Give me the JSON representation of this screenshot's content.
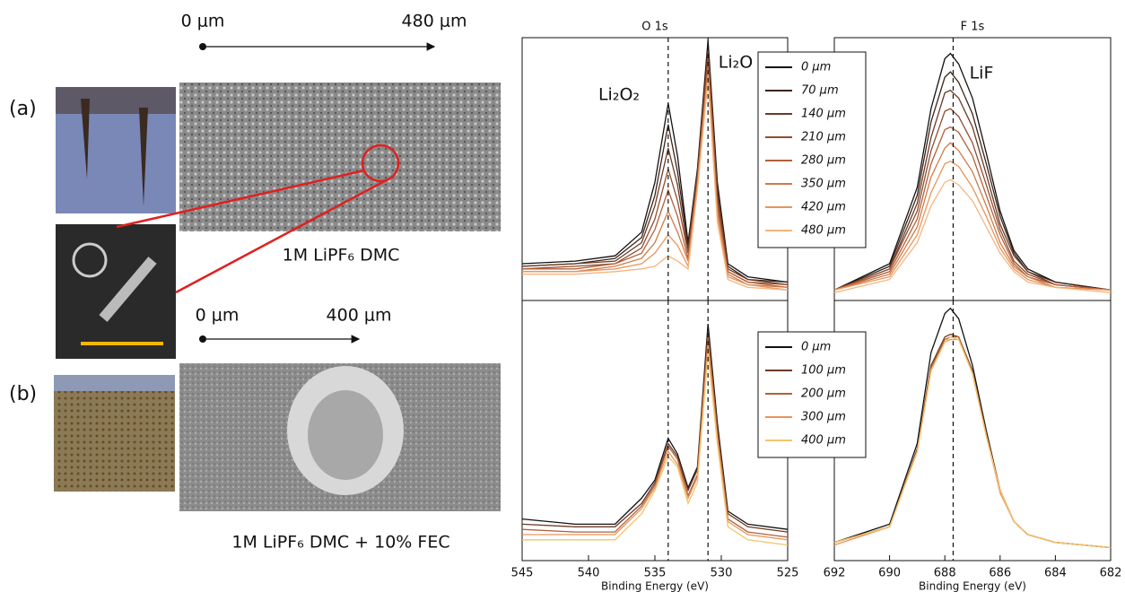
{
  "figure": {
    "label_a": "(a)",
    "label_b": "(b)",
    "scale_a_start": "0 μm",
    "scale_a_end": "480 μm",
    "caption_a": "1M LiPF₆ DMC",
    "scale_b_start": "0 μm",
    "scale_b_end": "400 μm",
    "caption_b": "1M LiPF₆ DMC + 10% FEC"
  },
  "chart_data": [
    {
      "type": "line",
      "title": "O 1s",
      "x": [
        545,
        541,
        538,
        536,
        535,
        534,
        533.3,
        532.5,
        531.8,
        531,
        530.3,
        529.5,
        528,
        525
      ],
      "xlim": [
        545,
        525
      ],
      "ylim": [
        0,
        100
      ],
      "legend": "right",
      "reference_lines": [
        534,
        531
      ],
      "annotations": [
        "Li₂O₂",
        "Li₂O"
      ],
      "series": [
        {
          "name": "0 μm",
          "color": "#111111",
          "values": [
            14,
            15,
            17,
            26,
            45,
            75,
            55,
            22,
            50,
            99,
            45,
            14,
            9,
            7
          ]
        },
        {
          "name": "70 μm",
          "color": "#3d2418",
          "values": [
            13,
            14,
            16,
            24,
            40,
            67,
            49,
            21,
            49,
            97,
            43,
            13,
            8,
            7
          ]
        },
        {
          "name": "140 μm",
          "color": "#6b3a26",
          "values": [
            13,
            14,
            15,
            22,
            36,
            58,
            44,
            19,
            48,
            95,
            41,
            12,
            8,
            6
          ]
        },
        {
          "name": "210 μm",
          "color": "#8f4d30",
          "values": [
            12,
            13,
            14,
            20,
            31,
            50,
            38,
            18,
            47,
            93,
            39,
            11,
            7,
            6
          ]
        },
        {
          "name": "280 μm",
          "color": "#b2603a",
          "values": [
            12,
            12,
            14,
            18,
            27,
            42,
            32,
            16,
            45,
            90,
            36,
            11,
            7,
            5
          ]
        },
        {
          "name": "350 μm",
          "color": "#d07a46",
          "values": [
            11,
            11,
            13,
            16,
            22,
            34,
            26,
            15,
            44,
            88,
            34,
            10,
            6,
            5
          ]
        },
        {
          "name": "420 μm",
          "color": "#e8955a",
          "values": [
            11,
            11,
            12,
            14,
            18,
            25,
            21,
            13,
            43,
            86,
            32,
            9,
            6,
            4
          ]
        },
        {
          "name": "480 μm",
          "color": "#f5b57e",
          "values": [
            10,
            10,
            11,
            12,
            13,
            17,
            15,
            12,
            42,
            84,
            30,
            8,
            5,
            4
          ]
        }
      ]
    },
    {
      "type": "line",
      "title": "F 1s",
      "x": [
        692,
        690,
        689,
        688.5,
        688,
        687.8,
        687.5,
        687,
        686.5,
        686,
        685.5,
        685,
        684,
        682
      ],
      "xlim": [
        692,
        682
      ],
      "ylim": [
        0,
        100
      ],
      "reference_lines": [
        687.7
      ],
      "annotations": [
        "LiF"
      ],
      "series": [
        {
          "color": "#111111",
          "values": [
            4,
            14,
            43,
            73,
            92,
            94,
            90,
            77,
            56,
            34,
            19,
            12,
            7,
            4
          ]
        },
        {
          "color": "#3d2418",
          "values": [
            4,
            13,
            40,
            68,
            85,
            87,
            83,
            71,
            52,
            32,
            18,
            11,
            7,
            4
          ]
        },
        {
          "color": "#6b3a26",
          "values": [
            4,
            12,
            37,
            62,
            79,
            80,
            77,
            66,
            48,
            29,
            17,
            11,
            6,
            4
          ]
        },
        {
          "color": "#8f4d30",
          "values": [
            4,
            12,
            34,
            57,
            72,
            73,
            70,
            60,
            44,
            27,
            15,
            10,
            6,
            4
          ]
        },
        {
          "color": "#b2603a",
          "values": [
            4,
            11,
            31,
            52,
            65,
            66,
            64,
            55,
            40,
            25,
            14,
            9,
            6,
            4
          ]
        },
        {
          "color": "#d07a46",
          "values": [
            4,
            10,
            28,
            47,
            58,
            60,
            57,
            49,
            36,
            22,
            13,
            9,
            5,
            4
          ]
        },
        {
          "color": "#e8955a",
          "values": [
            4,
            9,
            25,
            41,
            52,
            53,
            51,
            43,
            32,
            20,
            12,
            8,
            5,
            4
          ]
        },
        {
          "color": "#f5b57e",
          "values": [
            3,
            8,
            22,
            36,
            45,
            46,
            44,
            38,
            28,
            18,
            11,
            7,
            5,
            3
          ]
        }
      ]
    },
    {
      "type": "line",
      "x": [
        545,
        541,
        538,
        536,
        535,
        534,
        533.3,
        532.5,
        531.8,
        531,
        530.3,
        529.5,
        528,
        525
      ],
      "xlim": [
        545,
        525
      ],
      "ylim": [
        0,
        100
      ],
      "xticks": [
        545,
        540,
        535,
        530,
        525
      ],
      "xlabel": "Binding Energy (eV)",
      "legend": "right",
      "reference_lines": [
        534,
        531
      ],
      "series": [
        {
          "name": "0 μm",
          "color": "#111111",
          "values": [
            16,
            14,
            14,
            24,
            31,
            47,
            41,
            28,
            36,
            91,
            53,
            19,
            14,
            12
          ]
        },
        {
          "name": "100 μm",
          "color": "#6b3a26",
          "values": [
            14,
            13,
            13,
            22,
            30,
            45,
            40,
            27,
            35,
            88,
            51,
            18,
            13,
            11
          ]
        },
        {
          "name": "200 μm",
          "color": "#b2603a",
          "values": [
            12,
            11,
            11,
            21,
            29,
            44,
            39,
            25,
            33,
            86,
            49,
            16,
            11,
            9
          ]
        },
        {
          "name": "300 μm",
          "color": "#e8955a",
          "values": [
            10,
            10,
            10,
            20,
            28,
            42,
            37,
            24,
            32,
            83,
            47,
            15,
            10,
            8
          ]
        },
        {
          "name": "400 μm",
          "color": "#f5c46a",
          "values": [
            8,
            8,
            8,
            18,
            27,
            40,
            36,
            22,
            30,
            80,
            45,
            13,
            8,
            6
          ]
        }
      ]
    },
    {
      "type": "line",
      "x": [
        692,
        690,
        689,
        688.5,
        688,
        687.8,
        687.5,
        687,
        686.5,
        686,
        685.5,
        685,
        684,
        682
      ],
      "xlim": [
        692,
        682
      ],
      "ylim": [
        0,
        100
      ],
      "xticks": [
        692,
        690,
        688,
        686,
        684,
        682
      ],
      "xlabel": "Binding Energy (eV)",
      "reference_lines": [
        687.7
      ],
      "series": [
        {
          "color": "#111111",
          "values": [
            7,
            14,
            45,
            80,
            95,
            97,
            93,
            75,
            50,
            27,
            15,
            10,
            7,
            5
          ]
        },
        {
          "color": "#6b3a26",
          "values": [
            7,
            13,
            43,
            75,
            86,
            87,
            86,
            73,
            49,
            27,
            15,
            10,
            7,
            5
          ]
        },
        {
          "color": "#b2603a",
          "values": [
            7,
            13,
            42,
            74,
            85,
            86,
            86,
            72,
            48,
            27,
            15,
            10,
            7,
            5
          ]
        },
        {
          "color": "#e8955a",
          "values": [
            6,
            13,
            42,
            73,
            84,
            85,
            85,
            72,
            48,
            26,
            15,
            10,
            7,
            5
          ]
        },
        {
          "color": "#f5c46a",
          "values": [
            7,
            13,
            42,
            73,
            84,
            86,
            85,
            72,
            48,
            27,
            15,
            10,
            7,
            5
          ]
        }
      ]
    }
  ]
}
